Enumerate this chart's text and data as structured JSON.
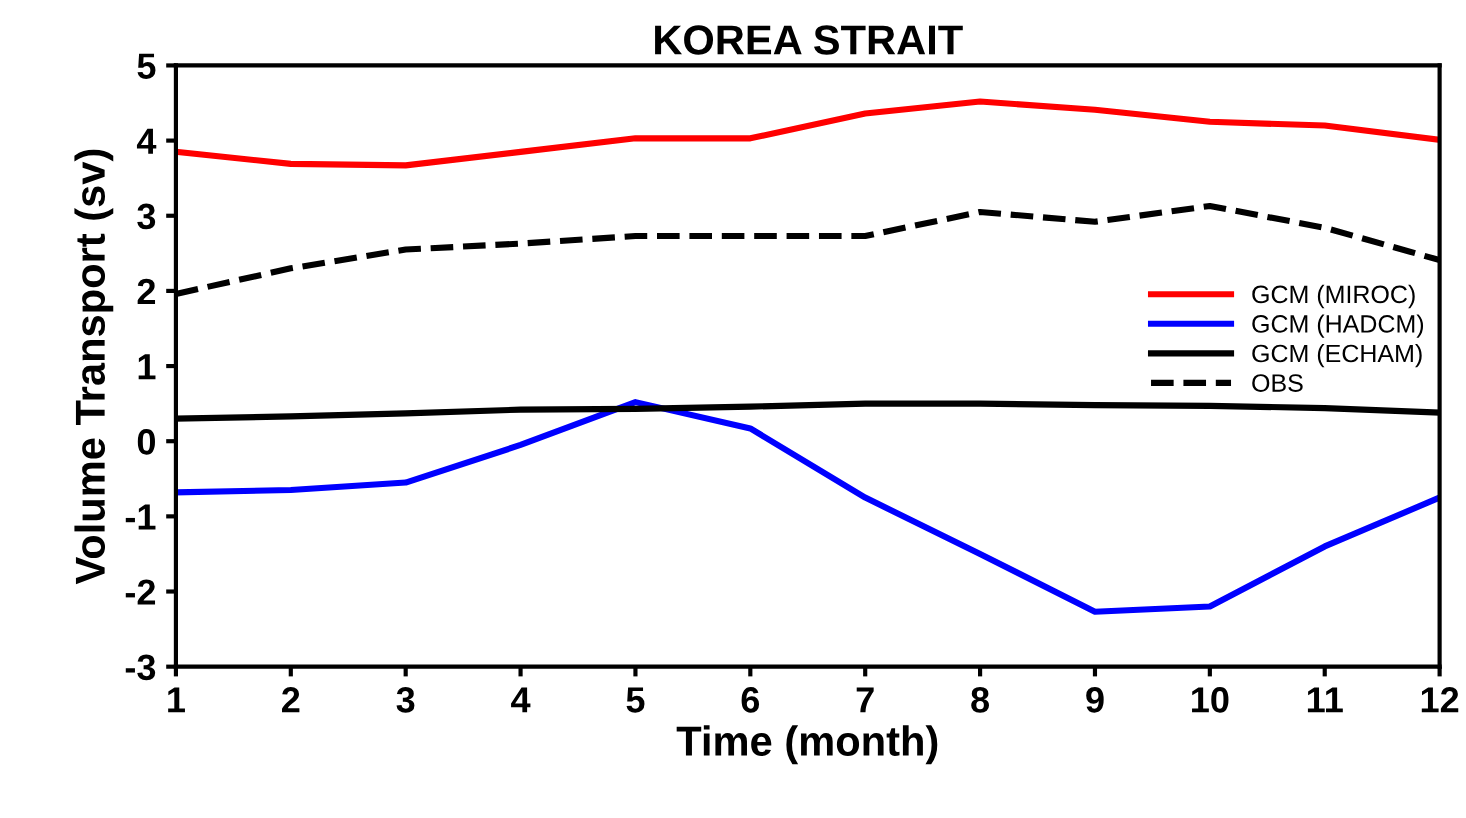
{
  "chart_data": {
    "type": "line",
    "title": "KOREA STRAIT",
    "xlabel": "Time (month)",
    "ylabel": "Volume Transport (sv)",
    "x": [
      1,
      2,
      3,
      4,
      5,
      6,
      7,
      8,
      9,
      10,
      11,
      12
    ],
    "series": [
      {
        "name": "GCM (MIROC)",
        "color": "#ff0000",
        "values": [
          3.85,
          3.69,
          3.67,
          3.85,
          4.03,
          4.03,
          4.36,
          4.52,
          4.41,
          4.25,
          4.2,
          4.01
        ]
      },
      {
        "name": "GCM (HADCM)",
        "color": "#0000ff",
        "values": [
          -0.68,
          -0.65,
          -0.55,
          -0.05,
          0.52,
          0.17,
          -0.75,
          -1.5,
          -2.27,
          -2.2,
          -1.4,
          -0.75
        ]
      },
      {
        "name": "GCM (ECHAM)",
        "color": "#000000",
        "values": [
          0.3,
          0.33,
          0.37,
          0.42,
          0.43,
          0.46,
          0.5,
          0.5,
          0.48,
          0.47,
          0.44,
          0.38
        ]
      },
      {
        "name": "OBS",
        "color": "#000000",
        "line_style": "dashed",
        "values": [
          1.96,
          2.3,
          2.55,
          2.63,
          2.73,
          2.73,
          2.73,
          3.05,
          2.92,
          3.13,
          2.84,
          2.41
        ]
      }
    ],
    "xlim": [
      1,
      12
    ],
    "xticks": [
      1,
      2,
      3,
      4,
      5,
      6,
      7,
      8,
      9,
      10,
      11,
      12
    ],
    "ylim": [
      -3,
      5
    ],
    "yticks": [
      -3,
      -2,
      -1,
      0,
      1,
      2,
      3,
      4,
      5
    ],
    "grid": false,
    "legend": "right",
    "line_style": "solid",
    "marker": "none"
  }
}
